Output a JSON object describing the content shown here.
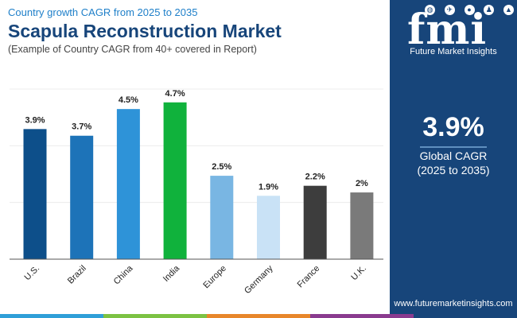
{
  "header": {
    "subtitle": "Country growth CAGR from 2025 to 2035",
    "title": "Scapula Reconstruction Market",
    "note": "(Example of Country CAGR from 40+ covered in Report)"
  },
  "chart_data": {
    "type": "bar",
    "categories": [
      "U.S.",
      "Brazil",
      "China",
      "India",
      "Europe",
      "Germany",
      "France",
      "U.K."
    ],
    "values": [
      3.9,
      3.7,
      4.5,
      4.7,
      2.5,
      1.9,
      2.2,
      2
    ],
    "data_labels": [
      "3.9%",
      "3.7%",
      "4.5%",
      "4.7%",
      "2.5%",
      "1.9%",
      "2.2%",
      "2%"
    ],
    "colors": [
      "#0d4f8a",
      "#1d73b8",
      "#2e93d8",
      "#10b23c",
      "#79b6e3",
      "#c9e2f6",
      "#3d3d3d",
      "#7a7a7a"
    ],
    "ylim": [
      0,
      5.6
    ],
    "grid": true,
    "legend": "none"
  },
  "sidepanel": {
    "logo_mark": "fmi",
    "logo_text": "Future Market Insights",
    "logo_icons": [
      "globe-icon",
      "plane-icon",
      "bulb-icon",
      "person-icon",
      "chart-icon"
    ],
    "cagr_value": "3.9%",
    "cagr_label": "Global CAGR",
    "cagr_range": "(2025 to 2035)",
    "website": "www.futuremarketinsights.com"
  },
  "bottom_bar": {
    "colors": [
      "#2f9fd8",
      "#7cc243",
      "#e8872a",
      "#8a3b8f",
      "#17457a"
    ]
  }
}
